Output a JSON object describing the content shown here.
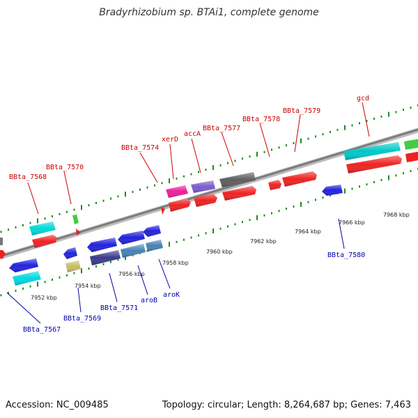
{
  "title": "Bradyrhizobium sp. BTAi1, complete genome",
  "footer": {
    "accession": "Accession: NC_009485",
    "summary": "Topology: circular; Length: 8,264,687 bp; Genes: 7,463"
  },
  "colors": {
    "backbone": "#8a8a8a",
    "tick": "#1e8a1e",
    "label_forward": "#cc0000",
    "label_reverse": "#0000aa"
  },
  "scale_labels": [
    "7952 kbp",
    "7954 kbp",
    "7956 kbp",
    "7958 kbp",
    "7960 kbp",
    "7962 kbp",
    "7964 kbp",
    "7966 kbp",
    "7968 kbp"
  ],
  "forward_genes": [
    {
      "label": "BBta_7568",
      "color": "#00d8d8"
    },
    {
      "label": "BBta_7570",
      "color": "#44cc44"
    },
    {
      "label": "BBta_7574",
      "color": "#ee2222"
    },
    {
      "label": "xerD",
      "color": "#ee1c9a"
    },
    {
      "label": "accA",
      "color": "#7a5ccc"
    },
    {
      "label": "BBta_7577",
      "color": "#5e5e5e"
    },
    {
      "label": "BBta_7578",
      "color": "#ee2222"
    },
    {
      "label": "BBta_7579",
      "color": "#ee2222"
    },
    {
      "label": "gcd",
      "color": "#00c8c8"
    }
  ],
  "reverse_genes": [
    {
      "label": "BBta_7567",
      "color": "#00d8e0"
    },
    {
      "label": "BBta_7569",
      "color": "#c8bc6a"
    },
    {
      "label": "BBta_7571",
      "color": "#2222dd"
    },
    {
      "label": "aroB",
      "color": "#3a3a8c"
    },
    {
      "label": "aroK",
      "color": "#4682b4"
    },
    {
      "label": "BBta_7580",
      "color": "#2222dd"
    }
  ]
}
